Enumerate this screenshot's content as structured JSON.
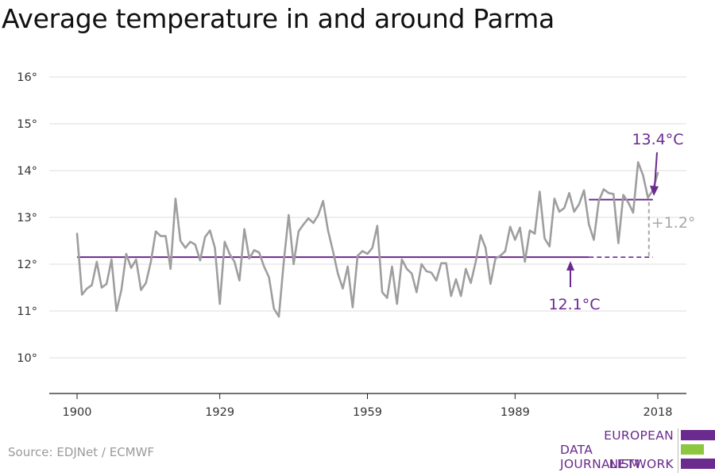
{
  "title": "Average temperature in and around Parma",
  "source": "Source: EDJNet / ECMWF",
  "logo": {
    "lines": [
      "EUROPEAN",
      "DATA JOURNALISM",
      "NETWORK"
    ]
  },
  "colors": {
    "series": "#9e9e9e",
    "reference": "#6b2a8e",
    "grid": "#dddddd",
    "difference": "#a8a8a8",
    "logo_accent": "#8dc63f"
  },
  "chart_data": {
    "type": "line",
    "title": "Average temperature in and around Parma",
    "xlabel": "",
    "ylabel": "",
    "xlim": [
      1900,
      2018
    ],
    "ylim": [
      9.5,
      16.5
    ],
    "x_ticks": [
      1900,
      1929,
      1959,
      1989,
      2018
    ],
    "x_tick_labels": [
      "1900",
      "1929",
      "1959",
      "1989",
      "2018"
    ],
    "y_ticks": [
      10,
      11,
      12,
      13,
      14,
      15,
      16
    ],
    "y_tick_labels": [
      "10°",
      "11°",
      "12°",
      "13°",
      "14°",
      "15°",
      "16°"
    ],
    "grid": true,
    "x": [
      1900,
      1901,
      1902,
      1903,
      1904,
      1905,
      1906,
      1907,
      1908,
      1909,
      1910,
      1911,
      1912,
      1913,
      1914,
      1915,
      1916,
      1917,
      1918,
      1919,
      1920,
      1921,
      1922,
      1923,
      1924,
      1925,
      1926,
      1927,
      1928,
      1929,
      1930,
      1931,
      1932,
      1933,
      1934,
      1935,
      1936,
      1937,
      1938,
      1939,
      1940,
      1941,
      1942,
      1943,
      1944,
      1945,
      1946,
      1947,
      1948,
      1949,
      1950,
      1951,
      1952,
      1953,
      1954,
      1955,
      1956,
      1957,
      1958,
      1959,
      1960,
      1961,
      1962,
      1963,
      1964,
      1965,
      1966,
      1967,
      1968,
      1969,
      1970,
      1971,
      1972,
      1973,
      1974,
      1975,
      1976,
      1977,
      1978,
      1979,
      1980,
      1981,
      1982,
      1983,
      1984,
      1985,
      1986,
      1987,
      1988,
      1989,
      1990,
      1991,
      1992,
      1993,
      1994,
      1995,
      1996,
      1997,
      1998,
      1999,
      2000,
      2001,
      2002,
      2003,
      2004,
      2005,
      2006,
      2007,
      2008,
      2009,
      2010,
      2011,
      2012,
      2013,
      2014,
      2015,
      2016,
      2017,
      2018
    ],
    "series": [
      {
        "values": [
          12.65,
          11.35,
          11.48,
          11.55,
          12.05,
          11.5,
          11.58,
          12.1,
          11.0,
          11.45,
          12.22,
          11.92,
          12.1,
          11.45,
          11.6,
          12.05,
          12.7,
          12.6,
          12.6,
          11.9,
          13.4,
          12.5,
          12.35,
          12.48,
          12.42,
          12.08,
          12.58,
          12.72,
          12.35,
          11.15,
          12.48,
          12.22,
          12.05,
          11.65,
          12.75,
          12.12,
          12.3,
          12.25,
          11.95,
          11.72,
          11.05,
          10.88,
          12.05,
          13.05,
          12.0,
          12.7,
          12.85,
          12.98,
          12.88,
          13.05,
          13.35,
          12.72,
          12.28,
          11.8,
          11.48,
          11.95,
          11.08,
          12.18,
          12.28,
          12.22,
          12.35,
          12.82,
          11.4,
          11.28,
          11.95,
          11.15,
          12.1,
          11.9,
          11.8,
          11.4,
          12.0,
          11.85,
          11.82,
          11.65,
          12.02,
          12.02,
          11.32,
          11.68,
          11.32,
          11.9,
          11.6,
          12.05,
          12.62,
          12.35,
          11.58,
          12.12,
          12.18,
          12.28,
          12.8,
          12.52,
          12.78,
          12.05,
          12.72,
          12.65,
          13.55,
          12.55,
          12.38,
          13.4,
          13.12,
          13.2,
          13.52,
          13.12,
          13.28,
          13.58,
          12.85,
          12.52,
          13.35,
          13.6,
          13.52,
          13.5,
          12.45,
          13.48,
          13.32,
          13.1,
          14.18,
          13.9,
          13.42,
          13.58,
          13.95
        ]
      }
    ],
    "reference_lines": [
      {
        "label": "12.1°C",
        "value": 12.15,
        "x_start": 1900,
        "x_end": 2004,
        "dashed_extension_to": 2017
      },
      {
        "label": "13.4°C",
        "value": 13.38,
        "x_start": 2004,
        "x_end": 2017
      }
    ],
    "difference_annotation": {
      "label": "+1.2°",
      "x": 2017,
      "from": 12.15,
      "to": 13.38
    }
  }
}
